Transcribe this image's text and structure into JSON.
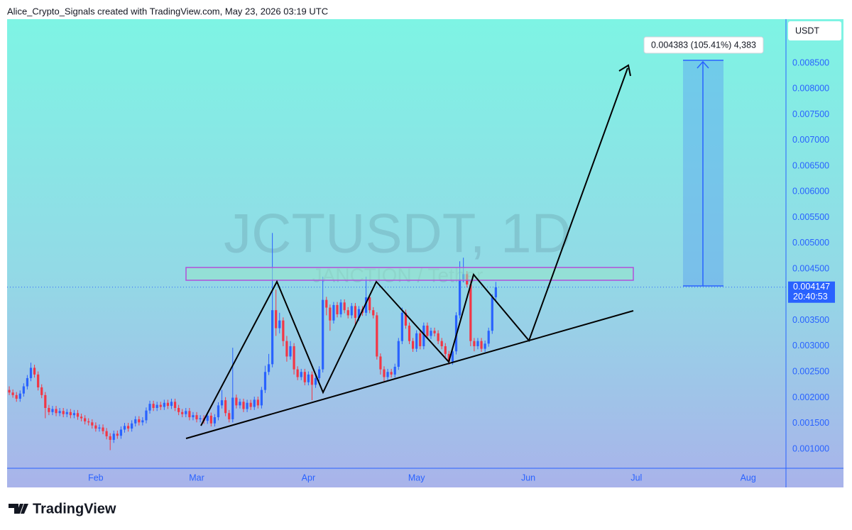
{
  "header": "Alice_Crypto_Signals created with TradingView.com, May 23, 2026 03:19 UTC",
  "footer": {
    "logo": "TradingView"
  },
  "chart_data": {
    "type": "candlestick",
    "title": "JCTUSDT, 1D",
    "subtitle": "JANCTION / Tether",
    "currency": "USDT",
    "up_color": "#2962ff",
    "down_color": "#f23645",
    "grid": false,
    "xlim": [
      6.4,
      222.5
    ],
    "xticks": [
      {
        "value": 31,
        "label": "Feb"
      },
      {
        "value": 59,
        "label": "Mar"
      },
      {
        "value": 90,
        "label": "Apr"
      },
      {
        "value": 120,
        "label": "May"
      },
      {
        "value": 151,
        "label": "Jun"
      },
      {
        "value": 181,
        "label": "Jul"
      },
      {
        "value": 212,
        "label": "Aug"
      }
    ],
    "ylim": [
      0.000628,
      0.009355
    ],
    "yticks": [
      {
        "value": 0.001,
        "label": "0.001000"
      },
      {
        "value": 0.0015,
        "label": "0.001500"
      },
      {
        "value": 0.002,
        "label": "0.002000"
      },
      {
        "value": 0.0025,
        "label": "0.002500"
      },
      {
        "value": 0.003,
        "label": "0.003000"
      },
      {
        "value": 0.0035,
        "label": "0.003500"
      },
      {
        "value": 0.004,
        "label": "0.004000"
      },
      {
        "value": 0.0045,
        "label": "0.004500"
      },
      {
        "value": 0.005,
        "label": "0.005000"
      },
      {
        "value": 0.0055,
        "label": "0.005500"
      },
      {
        "value": 0.006,
        "label": "0.006000"
      },
      {
        "value": 0.0065,
        "label": "0.006500"
      },
      {
        "value": 0.007,
        "label": "0.007000"
      },
      {
        "value": 0.0075,
        "label": "0.007500"
      },
      {
        "value": 0.008,
        "label": "0.008000"
      },
      {
        "value": 0.0085,
        "label": "0.008500"
      }
    ],
    "last_price": 0.004147,
    "countdown": "20:40:53",
    "annotation": "0.004383 (105.41%) 4,383",
    "candles": [
      [
        7,
        0.00215,
        0.00222,
        0.00205,
        0.0021
      ],
      [
        8,
        0.0021,
        0.00216,
        0.002,
        0.00205
      ],
      [
        9,
        0.00205,
        0.00211,
        0.00192,
        0.00198
      ],
      [
        10,
        0.00198,
        0.00214,
        0.00192,
        0.00208
      ],
      [
        11,
        0.00208,
        0.00228,
        0.00202,
        0.00222
      ],
      [
        12,
        0.00222,
        0.00244,
        0.00216,
        0.00238
      ],
      [
        13,
        0.00238,
        0.00268,
        0.00232,
        0.00258
      ],
      [
        14,
        0.00258,
        0.00264,
        0.00239,
        0.00245
      ],
      [
        15,
        0.00245,
        0.00251,
        0.00214,
        0.0022
      ],
      [
        16,
        0.0022,
        0.00226,
        0.00199,
        0.00205
      ],
      [
        17,
        0.00205,
        0.00211,
        0.0016,
        0.0018
      ],
      [
        18,
        0.0018,
        0.00186,
        0.00166,
        0.00172
      ],
      [
        19,
        0.00172,
        0.00184,
        0.00166,
        0.00178
      ],
      [
        20,
        0.00178,
        0.00184,
        0.00164,
        0.0017
      ],
      [
        21,
        0.0017,
        0.0018,
        0.00164,
        0.00174
      ],
      [
        22,
        0.00174,
        0.0018,
        0.00162,
        0.00168
      ],
      [
        23,
        0.00168,
        0.00178,
        0.00162,
        0.00172
      ],
      [
        24,
        0.00172,
        0.00178,
        0.0016,
        0.00166
      ],
      [
        25,
        0.00166,
        0.00176,
        0.0016,
        0.0017
      ],
      [
        26,
        0.0017,
        0.00176,
        0.00157,
        0.00163
      ],
      [
        27,
        0.00163,
        0.00169,
        0.00154,
        0.0016
      ],
      [
        28,
        0.0016,
        0.00166,
        0.00148,
        0.00154
      ],
      [
        29,
        0.00154,
        0.0016,
        0.00146,
        0.00152
      ],
      [
        30,
        0.00152,
        0.00158,
        0.0014,
        0.00146
      ],
      [
        31,
        0.00146,
        0.00152,
        0.00134,
        0.0014
      ],
      [
        32,
        0.0014,
        0.00148,
        0.00134,
        0.00142
      ],
      [
        33,
        0.00142,
        0.00148,
        0.00129,
        0.00135
      ],
      [
        34,
        0.00135,
        0.00141,
        0.00119,
        0.00125
      ],
      [
        35,
        0.00125,
        0.00131,
        0.00098,
        0.00118
      ],
      [
        36,
        0.00118,
        0.00136,
        0.00112,
        0.0013
      ],
      [
        37,
        0.0013,
        0.00136,
        0.0012,
        0.00126
      ],
      [
        38,
        0.00126,
        0.00144,
        0.0012,
        0.00138
      ],
      [
        39,
        0.00138,
        0.00151,
        0.00132,
        0.00145
      ],
      [
        40,
        0.00145,
        0.00151,
        0.00134,
        0.0014
      ],
      [
        41,
        0.0014,
        0.00156,
        0.00134,
        0.0015
      ],
      [
        42,
        0.0015,
        0.00164,
        0.00144,
        0.00158
      ],
      [
        43,
        0.00158,
        0.00164,
        0.00146,
        0.00152
      ],
      [
        44,
        0.00152,
        0.00162,
        0.00146,
        0.00156
      ],
      [
        45,
        0.00156,
        0.00181,
        0.0015,
        0.00175
      ],
      [
        46,
        0.00175,
        0.00194,
        0.00169,
        0.00188
      ],
      [
        47,
        0.00188,
        0.00194,
        0.00174,
        0.0018
      ],
      [
        48,
        0.0018,
        0.00192,
        0.00174,
        0.00186
      ],
      [
        49,
        0.00186,
        0.00192,
        0.00176,
        0.00182
      ],
      [
        50,
        0.00182,
        0.00196,
        0.00176,
        0.0019
      ],
      [
        51,
        0.0019,
        0.00196,
        0.00178,
        0.00184
      ],
      [
        52,
        0.00184,
        0.00198,
        0.00178,
        0.00192
      ],
      [
        53,
        0.00192,
        0.00198,
        0.00174,
        0.0018
      ],
      [
        54,
        0.0018,
        0.00186,
        0.00166,
        0.00172
      ],
      [
        55,
        0.00172,
        0.00178,
        0.00162,
        0.00168
      ],
      [
        56,
        0.00168,
        0.0018,
        0.00162,
        0.00174
      ],
      [
        57,
        0.00174,
        0.0018,
        0.00156,
        0.00162
      ],
      [
        58,
        0.00162,
        0.00172,
        0.00156,
        0.00166
      ],
      [
        59,
        0.00166,
        0.00172,
        0.00152,
        0.00158
      ],
      [
        60,
        0.00158,
        0.00166,
        0.00152,
        0.0016
      ],
      [
        61,
        0.0016,
        0.00166,
        0.00149,
        0.00155
      ],
      [
        62,
        0.00155,
        0.00171,
        0.00149,
        0.00165
      ],
      [
        63,
        0.00165,
        0.00171,
        0.00144,
        0.0015
      ],
      [
        64,
        0.0015,
        0.00168,
        0.00144,
        0.00162
      ],
      [
        65,
        0.00162,
        0.00191,
        0.00156,
        0.00185
      ],
      [
        66,
        0.00185,
        0.00215,
        0.00179,
        0.00195
      ],
      [
        67,
        0.00195,
        0.00201,
        0.00164,
        0.0017
      ],
      [
        68,
        0.0017,
        0.00176,
        0.00152,
        0.00158
      ],
      [
        69,
        0.00158,
        0.00297,
        0.00152,
        0.002
      ],
      [
        70,
        0.002,
        0.00206,
        0.00179,
        0.00185
      ],
      [
        71,
        0.00185,
        0.00198,
        0.00179,
        0.00192
      ],
      [
        72,
        0.00192,
        0.00198,
        0.00172,
        0.00178
      ],
      [
        73,
        0.00178,
        0.00196,
        0.00172,
        0.0019
      ],
      [
        74,
        0.0019,
        0.00196,
        0.00176,
        0.00182
      ],
      [
        75,
        0.00182,
        0.00202,
        0.00176,
        0.00196
      ],
      [
        76,
        0.00196,
        0.00202,
        0.00179,
        0.00185
      ],
      [
        77,
        0.00185,
        0.00221,
        0.00179,
        0.00215
      ],
      [
        78,
        0.00215,
        0.00262,
        0.00209,
        0.0025
      ],
      [
        79,
        0.0025,
        0.00285,
        0.00244,
        0.00265
      ],
      [
        80,
        0.00265,
        0.0052,
        0.00259,
        0.0037
      ],
      [
        81,
        0.0037,
        0.0041,
        0.0032,
        0.00335
      ],
      [
        82,
        0.00335,
        0.00365,
        0.00325,
        0.0035
      ],
      [
        83,
        0.0035,
        0.00356,
        0.003,
        0.0031
      ],
      [
        84,
        0.0031,
        0.0032,
        0.0027,
        0.0028
      ],
      [
        85,
        0.0028,
        0.0031,
        0.00274,
        0.003
      ],
      [
        86,
        0.003,
        0.00306,
        0.00245,
        0.00255
      ],
      [
        87,
        0.00255,
        0.00261,
        0.00234,
        0.0024
      ],
      [
        88,
        0.0024,
        0.00256,
        0.00234,
        0.0025
      ],
      [
        89,
        0.0025,
        0.00256,
        0.00224,
        0.0023
      ],
      [
        90,
        0.0023,
        0.00251,
        0.00224,
        0.00245
      ],
      [
        91,
        0.00245,
        0.00251,
        0.00195,
        0.00225
      ],
      [
        92,
        0.00225,
        0.00244,
        0.00219,
        0.00238
      ],
      [
        93,
        0.00238,
        0.00261,
        0.00232,
        0.00255
      ],
      [
        94,
        0.00255,
        0.00435,
        0.00249,
        0.0039
      ],
      [
        95,
        0.0039,
        0.00396,
        0.0036,
        0.00375
      ],
      [
        96,
        0.00375,
        0.00381,
        0.0033,
        0.0035
      ],
      [
        97,
        0.0035,
        0.00386,
        0.00344,
        0.0038
      ],
      [
        98,
        0.0038,
        0.00386,
        0.00356,
        0.00362
      ],
      [
        99,
        0.00362,
        0.00391,
        0.00356,
        0.00385
      ],
      [
        100,
        0.00385,
        0.00391,
        0.00364,
        0.0037
      ],
      [
        101,
        0.0037,
        0.00376,
        0.00354,
        0.0036
      ],
      [
        102,
        0.0036,
        0.00384,
        0.00354,
        0.00378
      ],
      [
        103,
        0.00378,
        0.00384,
        0.0034,
        0.00355
      ],
      [
        104,
        0.00355,
        0.00378,
        0.00349,
        0.00372
      ],
      [
        105,
        0.00372,
        0.00378,
        0.00359,
        0.00365
      ],
      [
        106,
        0.00365,
        0.00435,
        0.00359,
        0.00395
      ],
      [
        107,
        0.00395,
        0.00401,
        0.00364,
        0.0037
      ],
      [
        108,
        0.0037,
        0.00376,
        0.00354,
        0.0036
      ],
      [
        109,
        0.0036,
        0.00366,
        0.00274,
        0.0028
      ],
      [
        110,
        0.0028,
        0.00286,
        0.00245,
        0.00255
      ],
      [
        111,
        0.00255,
        0.00261,
        0.00232,
        0.0024
      ],
      [
        112,
        0.0024,
        0.00256,
        0.00234,
        0.0025
      ],
      [
        113,
        0.0025,
        0.00256,
        0.00239,
        0.00245
      ],
      [
        114,
        0.00245,
        0.00266,
        0.00239,
        0.0026
      ],
      [
        115,
        0.0026,
        0.00316,
        0.00254,
        0.0031
      ],
      [
        116,
        0.0031,
        0.00375,
        0.00304,
        0.00365
      ],
      [
        117,
        0.00365,
        0.00371,
        0.00334,
        0.0034
      ],
      [
        118,
        0.0034,
        0.00346,
        0.00304,
        0.0031
      ],
      [
        119,
        0.0031,
        0.00316,
        0.00289,
        0.00295
      ],
      [
        120,
        0.00295,
        0.00331,
        0.00289,
        0.00325
      ],
      [
        121,
        0.00325,
        0.00331,
        0.00294,
        0.003
      ],
      [
        122,
        0.003,
        0.00346,
        0.00294,
        0.0034
      ],
      [
        123,
        0.0034,
        0.00346,
        0.00314,
        0.0032
      ],
      [
        124,
        0.0032,
        0.00336,
        0.00314,
        0.0033
      ],
      [
        125,
        0.0033,
        0.00336,
        0.00319,
        0.00325
      ],
      [
        126,
        0.00325,
        0.00331,
        0.00304,
        0.0031
      ],
      [
        127,
        0.0031,
        0.00316,
        0.00294,
        0.003
      ],
      [
        128,
        0.003,
        0.00306,
        0.00279,
        0.00285
      ],
      [
        129,
        0.00285,
        0.00291,
        0.00264,
        0.0027
      ],
      [
        130,
        0.0027,
        0.00296,
        0.00264,
        0.0029
      ],
      [
        131,
        0.0029,
        0.00366,
        0.00284,
        0.0036
      ],
      [
        132,
        0.0036,
        0.00465,
        0.00354,
        0.0043
      ],
      [
        133,
        0.0043,
        0.00472,
        0.00424,
        0.0044
      ],
      [
        134,
        0.0044,
        0.00446,
        0.00414,
        0.0042
      ],
      [
        135,
        0.0042,
        0.00426,
        0.003,
        0.0031
      ],
      [
        136,
        0.0031,
        0.00316,
        0.0029,
        0.003
      ],
      [
        137,
        0.003,
        0.00316,
        0.00294,
        0.0031
      ],
      [
        138,
        0.0031,
        0.00316,
        0.00289,
        0.00295
      ],
      [
        139,
        0.00295,
        0.00311,
        0.00289,
        0.00305
      ],
      [
        140,
        0.00305,
        0.00336,
        0.00299,
        0.0033
      ],
      [
        141,
        0.0033,
        0.00401,
        0.00324,
        0.00395
      ],
      [
        142,
        0.00395,
        0.00425,
        0.00389,
        0.004147
      ]
    ]
  }
}
